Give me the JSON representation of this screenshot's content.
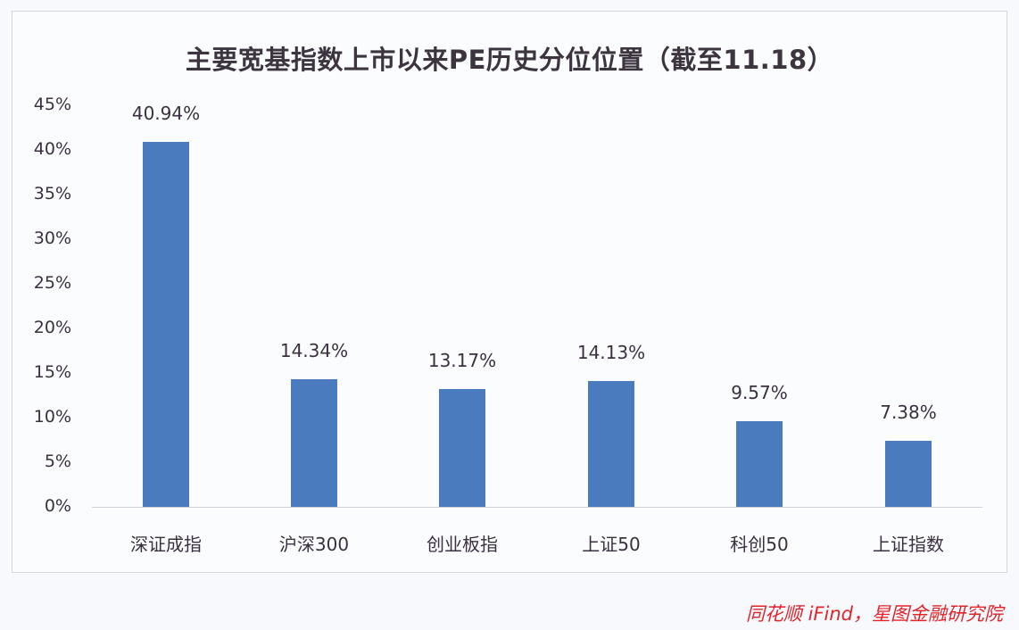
{
  "title": "主要宽基指数上市以来PE历史分位位置（截至11.18）",
  "source": "同花顺 iFind，星图金融研究院",
  "y_ticks": [
    "45%",
    "40%",
    "35%",
    "30%",
    "25%",
    "20%",
    "15%",
    "10%",
    "5%",
    "0%"
  ],
  "bars": [
    {
      "category": "深证成指",
      "value": 40.94,
      "label": "40.94%"
    },
    {
      "category": "沪深300",
      "value": 14.34,
      "label": "14.34%"
    },
    {
      "category": "创业板指",
      "value": 13.17,
      "label": "13.17%"
    },
    {
      "category": "上证50",
      "value": 14.13,
      "label": "14.13%"
    },
    {
      "category": "科创50",
      "value": 9.57,
      "label": "9.57%"
    },
    {
      "category": "上证指数",
      "value": 7.38,
      "label": "7.38%"
    }
  ],
  "colors": {
    "bar": "#4a7bbf",
    "source": "#e0242c"
  },
  "chart_data": {
    "type": "bar",
    "title": "主要宽基指数上市以来PE历史分位位置（截至11.18）",
    "categories": [
      "深证成指",
      "沪深300",
      "创业板指",
      "上证50",
      "科创50",
      "上证指数"
    ],
    "values": [
      40.94,
      14.34,
      13.17,
      14.13,
      9.57,
      7.38
    ],
    "data_labels": [
      "40.94%",
      "14.34%",
      "13.17%",
      "14.13%",
      "9.57%",
      "7.38%"
    ],
    "xlabel": "",
    "ylabel": "",
    "ylim": [
      0,
      45
    ],
    "y_tick_step": 5,
    "y_format": "percent",
    "grid": false,
    "legend": "none",
    "source": "同花顺 iFind，星图金融研究院"
  }
}
